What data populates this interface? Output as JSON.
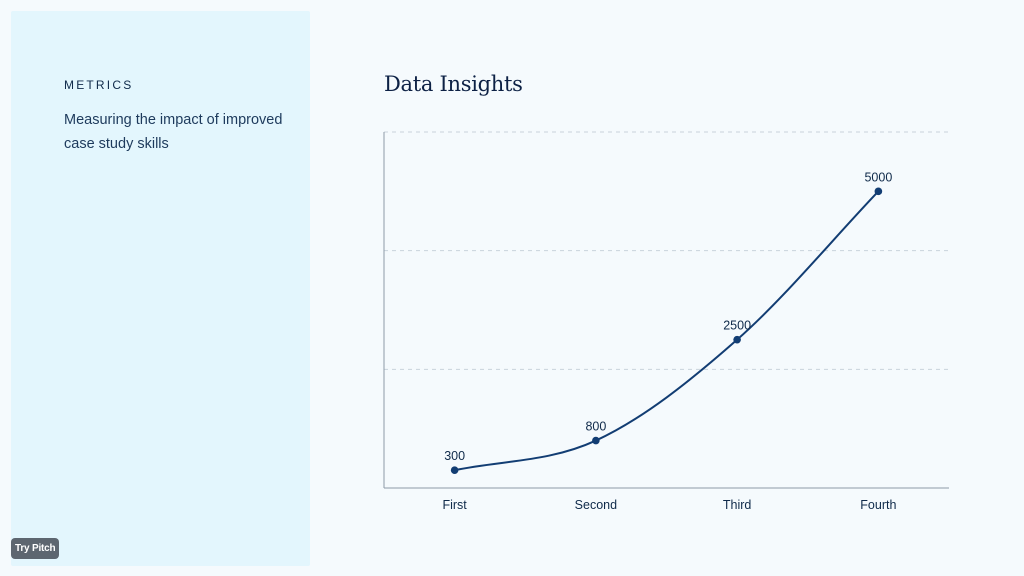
{
  "sidebar": {
    "eyebrow": "METRICS",
    "description": "Measuring the impact of improved case study skills",
    "badge": "Try Pitch"
  },
  "chart_data": {
    "type": "line",
    "title": "Data Insights",
    "categories": [
      "First",
      "Second",
      "Third",
      "Fourth"
    ],
    "values": [
      300,
      800,
      2500,
      5000
    ],
    "data_labels": [
      "300",
      "800",
      "2500",
      "5000"
    ],
    "ylim": [
      0,
      6000
    ],
    "xlabel": "",
    "ylabel": "",
    "grid": true,
    "smooth": true,
    "line_color": "#123d73"
  }
}
